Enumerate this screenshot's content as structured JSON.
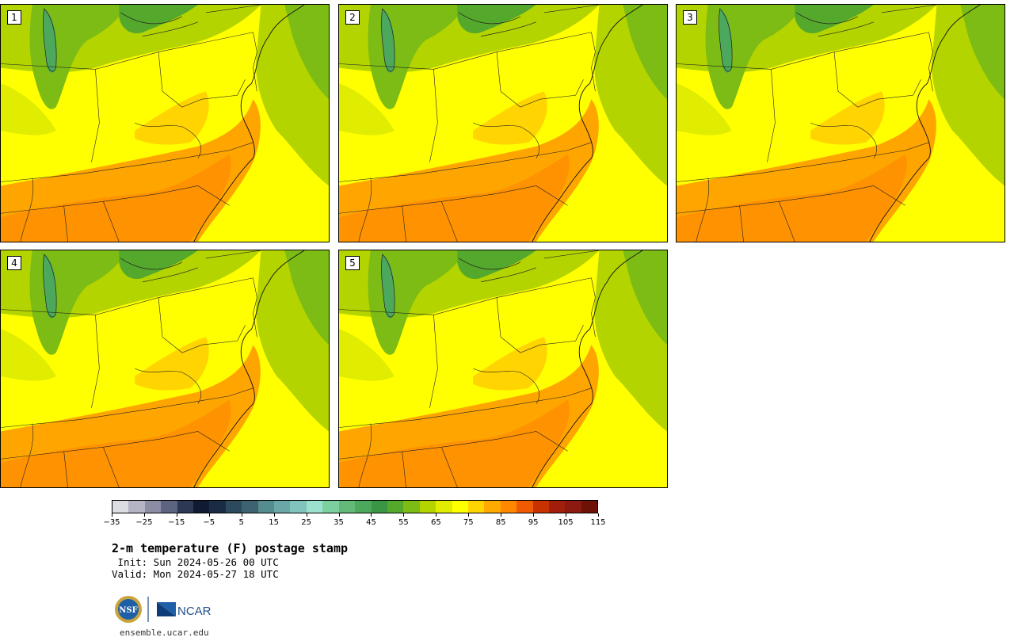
{
  "panels": [
    {
      "label": "1"
    },
    {
      "label": "2"
    },
    {
      "label": "3"
    },
    {
      "label": "4"
    },
    {
      "label": "5"
    }
  ],
  "colorbar": {
    "colors": [
      "#dcdce4",
      "#b4b4c4",
      "#8c8ca4",
      "#5c6480",
      "#2c3854",
      "#101a30",
      "#1a2c44",
      "#2c4a5c",
      "#3e6270",
      "#548c90",
      "#6aa8a8",
      "#80c4bc",
      "#9ce0d0",
      "#7cd0a0",
      "#64b878",
      "#4ca85c",
      "#3a9644",
      "#54a82c",
      "#7cbc14",
      "#b4d400",
      "#e0ec00",
      "#ffff00",
      "#ffd400",
      "#ffaa00",
      "#ff8800",
      "#f05a00",
      "#c83200",
      "#a01e0a",
      "#8c1a10",
      "#6e1208"
    ],
    "ticks": [
      "−35",
      "−25",
      "−15",
      "−5",
      "5",
      "15",
      "25",
      "35",
      "45",
      "55",
      "65",
      "75",
      "85",
      "95",
      "105",
      "115"
    ]
  },
  "title": "2-m temperature (F) postage stamp",
  "init": " Init: Sun 2024-05-26 00 UTC",
  "valid": "Valid: Mon 2024-05-27 18 UTC",
  "logo": {
    "nsf": "NSF",
    "ncar": "NCAR"
  },
  "site": "ensemble.ucar.edu"
}
